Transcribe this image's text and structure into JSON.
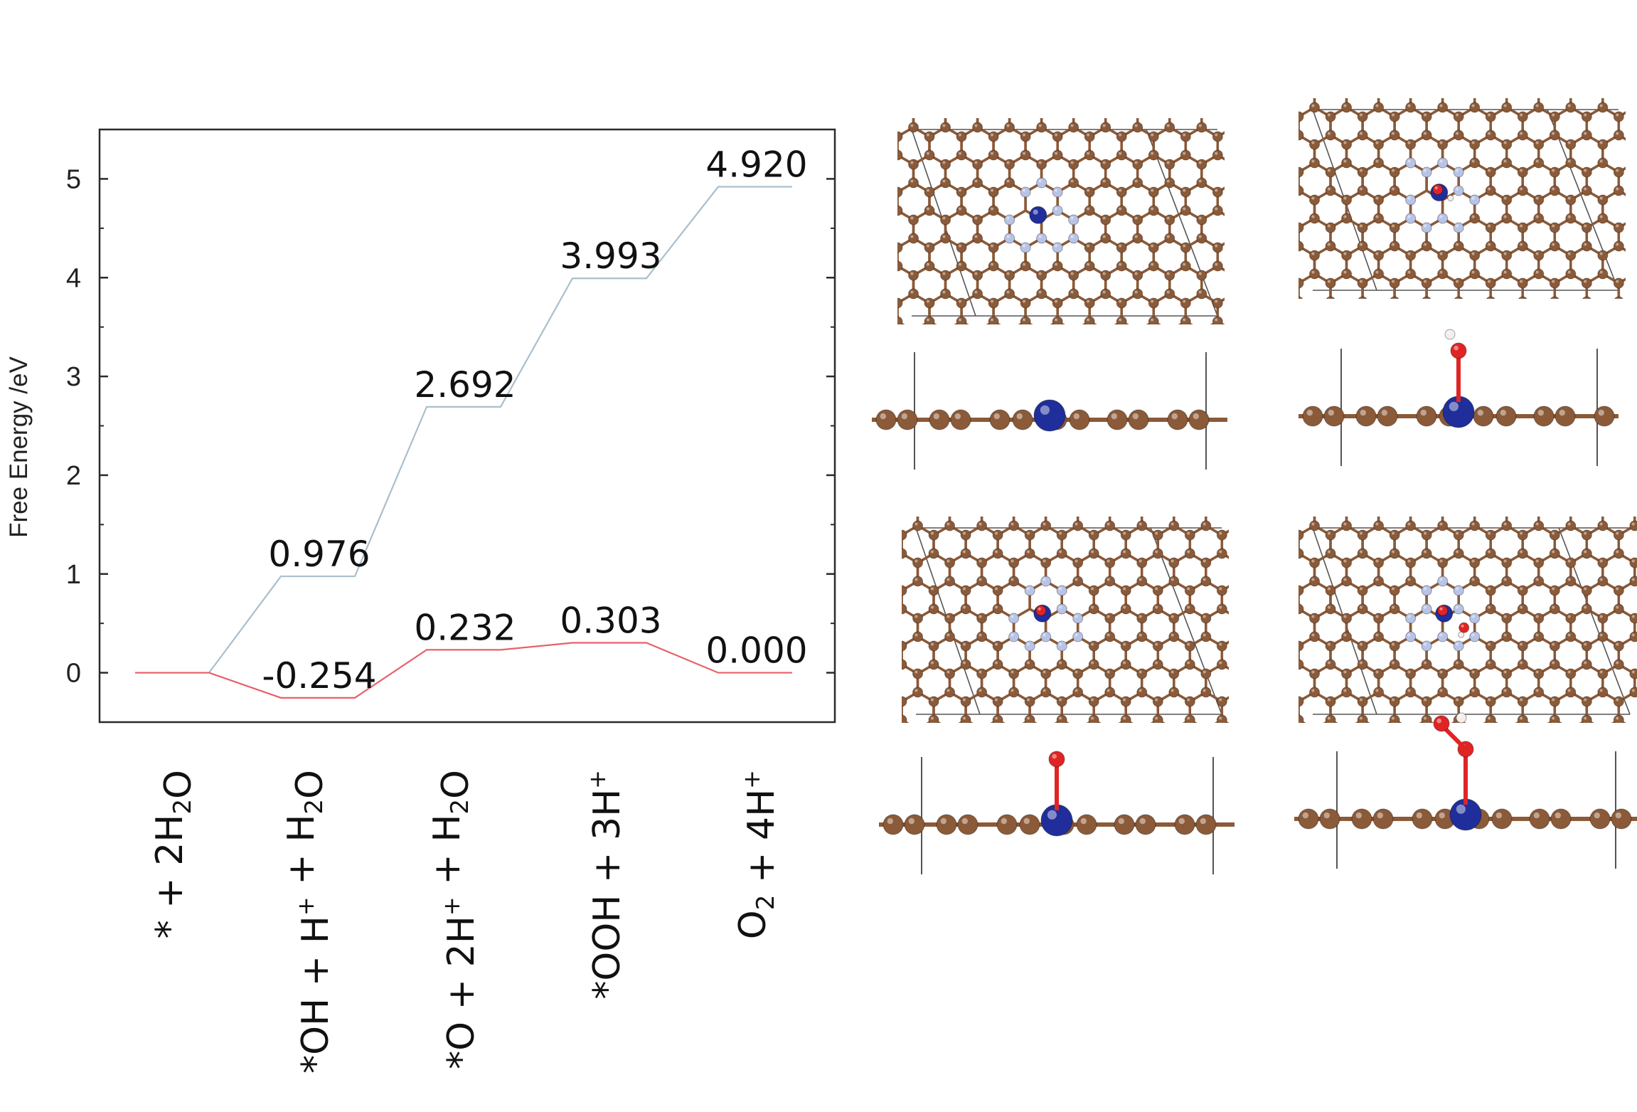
{
  "chart_data": {
    "type": "line",
    "ylabel": "Free Energy /eV",
    "ylim": [
      -0.5,
      5.5
    ],
    "yticks": [
      "0",
      "1",
      "2",
      "3",
      "4",
      "5"
    ],
    "categories": [
      {
        "parts": [
          [
            "*",
            "n"
          ],
          [
            " + 2H",
            "n"
          ],
          [
            "2",
            "sub"
          ],
          [
            "O",
            "n"
          ]
        ]
      },
      {
        "parts": [
          [
            "*OH + H",
            "n"
          ],
          [
            "+",
            "sup"
          ],
          [
            " + H",
            "n"
          ],
          [
            "2",
            "sub"
          ],
          [
            "O",
            "n"
          ]
        ]
      },
      {
        "parts": [
          [
            "*O + 2H",
            "n"
          ],
          [
            "+",
            "sup"
          ],
          [
            " + H",
            "n"
          ],
          [
            "2",
            "sub"
          ],
          [
            "O",
            "n"
          ]
        ]
      },
      {
        "parts": [
          [
            "*OOH + 3H",
            "n"
          ],
          [
            "+",
            "sup"
          ]
        ]
      },
      {
        "parts": [
          [
            "O",
            "n"
          ],
          [
            "2",
            "sub"
          ],
          [
            " + 4H",
            "n"
          ],
          [
            "+",
            "sup"
          ]
        ]
      }
    ],
    "series": [
      {
        "color": "#a9bfcd",
        "values": [
          0.0,
          0.976,
          2.692,
          3.993,
          4.92
        ],
        "labels": [
          "",
          "0.976",
          "2.692",
          "3.993",
          "4.920"
        ]
      },
      {
        "color": "#e8606a",
        "values": [
          0.0,
          -0.254,
          0.232,
          0.303,
          0.0
        ],
        "labels": [
          "",
          "-0.254",
          "0.232",
          "0.303",
          "0.000"
        ]
      }
    ],
    "grid": false
  },
  "structure_panels": [
    {
      "adsorbate": "none"
    },
    {
      "adsorbate": "OH"
    },
    {
      "adsorbate": "O"
    },
    {
      "adsorbate": "OOH"
    }
  ],
  "colors": {
    "carbon": "#8b5a38",
    "metal": "#1f2e9a",
    "nitrogen": "#b8c4e6",
    "oxygen": "#e02424",
    "hydrogen": "#f4eeee"
  }
}
